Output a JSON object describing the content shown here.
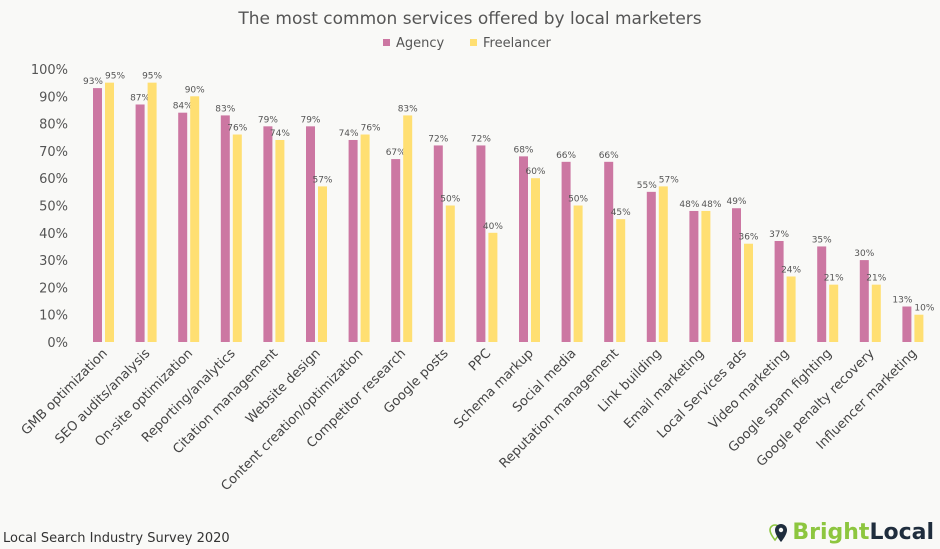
{
  "chart_data": {
    "type": "bar",
    "title": "The most common services offered by local marketers",
    "categories": [
      "GMB optimization",
      "SEO audits/analysis",
      "On-site optimization",
      "Reporting/analytics",
      "Citation management",
      "Website design",
      "Content creation/optimization",
      "Competitor research",
      "Google posts",
      "PPC",
      "Schema markup",
      "Social media",
      "Reputation management",
      "Link building",
      "Email marketing",
      "Local Services ads",
      "Video marketing",
      "Google spam fighting",
      "Google penalty recovery",
      "Influencer marketing"
    ],
    "series": [
      {
        "name": "Agency",
        "color": "#cc77a2",
        "values": [
          93,
          87,
          84,
          83,
          79,
          79,
          74,
          67,
          72,
          72,
          68,
          66,
          66,
          55,
          48,
          49,
          37,
          35,
          30,
          13
        ]
      },
      {
        "name": "Freelancer",
        "color": "#ffdf72",
        "values": [
          95,
          95,
          90,
          76,
          74,
          57,
          76,
          83,
          50,
          40,
          60,
          50,
          45,
          57,
          48,
          36,
          24,
          21,
          21,
          10
        ]
      }
    ],
    "yticks": [
      "0%",
      "10%",
      "20%",
      "30%",
      "40%",
      "50%",
      "60%",
      "70%",
      "80%",
      "90%",
      "100%"
    ],
    "ylim": [
      0,
      100
    ],
    "grid": false,
    "legend": "top"
  },
  "footer": "Local Search Industry Survey 2020",
  "logo": {
    "part1": "Bright",
    "part2": "Local",
    "color1": "#8dc63f",
    "color2": "#1f2d3d"
  }
}
